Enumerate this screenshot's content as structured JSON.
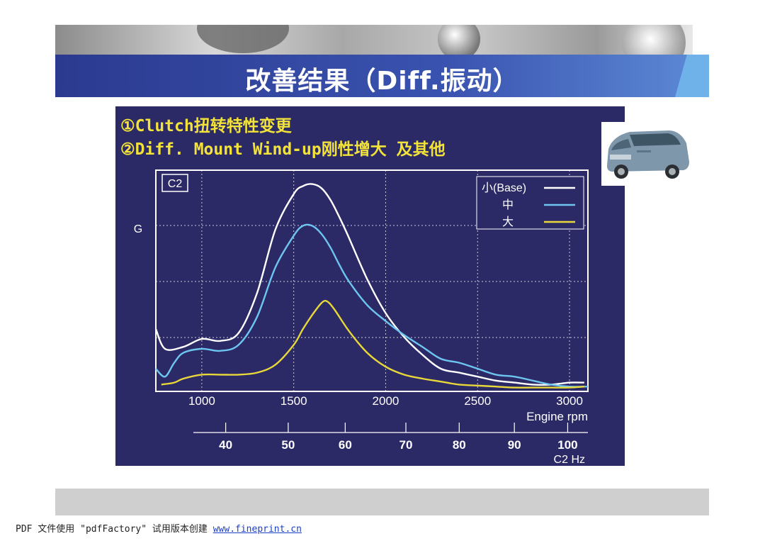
{
  "slide": {
    "title": "改善结果（Diff.振动）",
    "note1": "①Clutch扭转特性变更",
    "note2": "②Diff. Mount Wind-up刚性增大  及其他",
    "footer_text": "PDF 文件使用 \"pdfFactory\" 试用版本创建 ",
    "footer_link": "www.fineprint.cn"
  },
  "colors": {
    "panel": "#2b2a66",
    "title_bar": "#2b3a8f",
    "note_text": "#f2e23a",
    "series_base": "#ffffff",
    "series_mid": "#6ec6f0",
    "series_large": "#e8d83a"
  },
  "chart_data": {
    "type": "line",
    "box_label": "C2",
    "ylabel": "G",
    "xlabel": "Engine  rpm",
    "xlim": [
      750,
      3100
    ],
    "ylim": [
      0,
      1
    ],
    "x_ticks": [
      1000,
      1500,
      2000,
      2500,
      3000
    ],
    "grid": true,
    "legend_position": "top-right",
    "secondary_axis": {
      "label": "C2 Hz",
      "ticks": [
        {
          "label": "40",
          "rpm": 1130
        },
        {
          "label": "50",
          "rpm": 1470
        },
        {
          "label": "60",
          "rpm": 1780
        },
        {
          "label": "70",
          "rpm": 2110
        },
        {
          "label": "80",
          "rpm": 2400
        },
        {
          "label": "90",
          "rpm": 2700
        },
        {
          "label": "100",
          "rpm": 2990
        }
      ]
    },
    "series": [
      {
        "name": "小(Base)",
        "color": "#ffffff",
        "x": [
          750,
          800,
          900,
          1000,
          1100,
          1200,
          1300,
          1400,
          1500,
          1550,
          1600,
          1650,
          1700,
          1750,
          1800,
          1900,
          2000,
          2100,
          2200,
          2300,
          2400,
          2500,
          2600,
          2700,
          2800,
          2900,
          3000,
          3080
        ],
        "y": [
          0.3,
          0.2,
          0.21,
          0.25,
          0.24,
          0.28,
          0.48,
          0.8,
          0.98,
          1.02,
          1.03,
          1.01,
          0.95,
          0.86,
          0.76,
          0.55,
          0.38,
          0.26,
          0.17,
          0.1,
          0.08,
          0.06,
          0.04,
          0.03,
          0.02,
          0.02,
          0.03,
          0.03
        ]
      },
      {
        "name": "中",
        "color": "#6ec6f0",
        "x": [
          750,
          800,
          850,
          900,
          1000,
          1100,
          1200,
          1300,
          1400,
          1500,
          1550,
          1600,
          1650,
          1700,
          1750,
          1800,
          1900,
          2000,
          2100,
          2200,
          2300,
          2400,
          2500,
          2600,
          2700,
          2800,
          2900,
          3000,
          3100
        ],
        "y": [
          0.1,
          0.06,
          0.13,
          0.18,
          0.2,
          0.19,
          0.22,
          0.36,
          0.61,
          0.77,
          0.82,
          0.82,
          0.78,
          0.71,
          0.62,
          0.54,
          0.42,
          0.34,
          0.27,
          0.21,
          0.15,
          0.13,
          0.1,
          0.07,
          0.06,
          0.04,
          0.02,
          0.01,
          0.01
        ]
      },
      {
        "name": "大",
        "color": "#e8d83a",
        "x": [
          780,
          850,
          900,
          1000,
          1100,
          1200,
          1300,
          1400,
          1500,
          1550,
          1600,
          1650,
          1680,
          1720,
          1800,
          1900,
          2000,
          2100,
          2200,
          2300,
          2400,
          2500,
          2600,
          2700,
          2800,
          2900,
          3000,
          3080
        ],
        "y": [
          0.02,
          0.03,
          0.05,
          0.07,
          0.07,
          0.07,
          0.08,
          0.12,
          0.22,
          0.3,
          0.37,
          0.43,
          0.44,
          0.4,
          0.29,
          0.18,
          0.11,
          0.07,
          0.05,
          0.035,
          0.02,
          0.015,
          0.01,
          0.005,
          0.005,
          0.005,
          0.005,
          0.01
        ]
      }
    ]
  }
}
